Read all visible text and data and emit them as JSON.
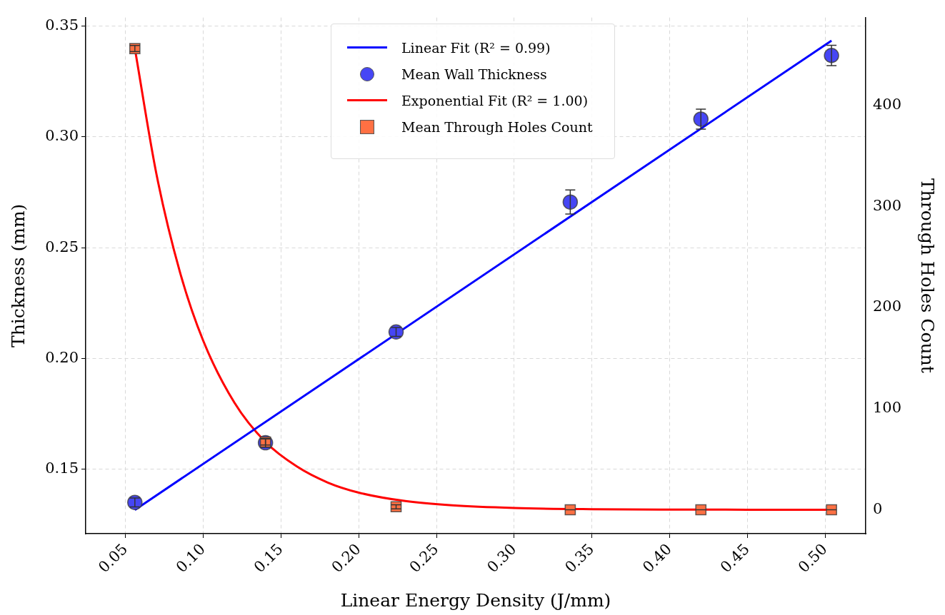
{
  "chart_data": {
    "type": "scatter",
    "xlabel": "Linear Energy Density (J/mm)",
    "ylabel": "Thickness (mm)",
    "y2label": "Through Holes Count",
    "xlim": [
      0.0244,
      0.526
    ],
    "xticks": [
      {
        "value": 0.05,
        "label": "0.05"
      },
      {
        "value": 0.1,
        "label": "0.10"
      },
      {
        "value": 0.15,
        "label": "0.15"
      },
      {
        "value": 0.2,
        "label": "0.20"
      },
      {
        "value": 0.25,
        "label": "0.25"
      },
      {
        "value": 0.3,
        "label": "0.30"
      },
      {
        "value": 0.35,
        "label": "0.35"
      },
      {
        "value": 0.4,
        "label": "0.40"
      },
      {
        "value": 0.45,
        "label": "0.45"
      },
      {
        "value": 0.5,
        "label": "0.50"
      }
    ],
    "ylim": [
      0.121,
      0.3538
    ],
    "yticks": [
      {
        "value": 0.15,
        "label": "0.15"
      },
      {
        "value": 0.2,
        "label": "0.20"
      },
      {
        "value": 0.25,
        "label": "0.25"
      },
      {
        "value": 0.3,
        "label": "0.30"
      },
      {
        "value": 0.35,
        "label": "0.35"
      }
    ],
    "y2lim": [
      -23.6,
      486.7
    ],
    "y2ticks": [
      0,
      100,
      200,
      300,
      400
    ],
    "grid": true,
    "legend": "top",
    "series": [
      {
        "name": "Linear Fit (R² = 0.99)",
        "type": "line",
        "color": "#0000ff",
        "marker": "none",
        "x": [
          0.056,
          0.504
        ],
        "values": [
          0.1317,
          0.3434
        ]
      },
      {
        "name": "Mean Wall Thickness",
        "color": "#4646f5",
        "marker": "circle",
        "x": [
          0.056,
          0.14,
          0.224,
          0.336,
          0.42,
          0.504
        ],
        "values": [
          0.1351,
          0.162,
          0.212,
          0.2706,
          0.308,
          0.3367
        ],
        "errors": [
          0.002,
          0.002,
          0.002,
          0.0054,
          0.0045,
          0.0046
        ]
      },
      {
        "name": "Exponential Fit (R² = 1.00)",
        "type": "line",
        "axis": "y2",
        "color": "#ff0000",
        "marker": "none",
        "x": [
          0.056,
          0.07,
          0.085,
          0.1,
          0.12,
          0.14,
          0.16,
          0.18,
          0.2,
          0.23,
          0.26,
          0.3,
          0.35,
          0.4,
          0.45,
          0.504
        ],
        "values": [
          456,
          331,
          235,
          167,
          106,
          67,
          43,
          27,
          17,
          8.6,
          4.4,
          1.8,
          0.6,
          0.2,
          0.1,
          0
        ]
      },
      {
        "name": "Mean Through Holes Count",
        "axis": "y2",
        "color": "#ff7043",
        "marker": "square",
        "x": [
          0.056,
          0.14,
          0.224,
          0.336,
          0.42,
          0.504
        ],
        "values": [
          456,
          67,
          3,
          0,
          0,
          0
        ],
        "errors": [
          3,
          3,
          2,
          0,
          0,
          0
        ]
      }
    ]
  }
}
